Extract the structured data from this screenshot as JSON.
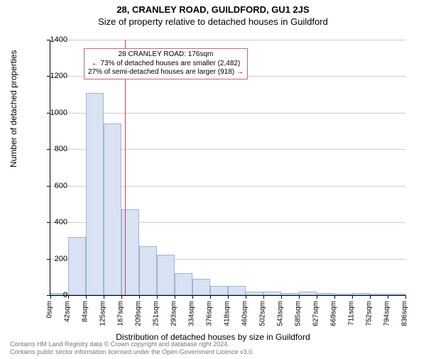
{
  "header": {
    "address": "28, CRANLEY ROAD, GUILDFORD, GU1 2JS",
    "subtitle": "Size of property relative to detached houses in Guildford"
  },
  "chart": {
    "type": "histogram",
    "ylabel": "Number of detached properties",
    "xlabel": "Distribution of detached houses by size in Guildford",
    "ylim": [
      0,
      1400
    ],
    "ytick_step": 200,
    "yticks": [
      0,
      200,
      400,
      600,
      800,
      1000,
      1200,
      1400
    ],
    "xticks": [
      "0sqm",
      "42sqm",
      "84sqm",
      "125sqm",
      "167sqm",
      "209sqm",
      "251sqm",
      "293sqm",
      "334sqm",
      "376sqm",
      "418sqm",
      "460sqm",
      "502sqm",
      "543sqm",
      "585sqm",
      "627sqm",
      "669sqm",
      "711sqm",
      "752sqm",
      "794sqm",
      "836sqm"
    ],
    "values": [
      10,
      320,
      1110,
      940,
      470,
      270,
      220,
      120,
      90,
      50,
      50,
      20,
      20,
      10,
      20,
      10,
      5,
      10,
      5,
      5
    ],
    "bar_fill": "#d8e2f2",
    "bar_border": "#9fb3d6",
    "grid_color": "#cccccc",
    "background_color": "#ffffff",
    "axis_color": "#000000",
    "marker": {
      "x_sqm": 176,
      "color": "#cc4444"
    },
    "annotation": {
      "border_color": "#cc6666",
      "line1": "28 CRANLEY ROAD: 176sqm",
      "line2": "← 73% of detached houses are smaller (2,482)",
      "line3": "27% of semi-detached houses are larger (918) →"
    }
  },
  "footer": {
    "line1": "Contains HM Land Registry data © Crown copyright and database right 2024.",
    "line2": "Contains public sector information licensed under the Open Government Licence v3.0."
  }
}
